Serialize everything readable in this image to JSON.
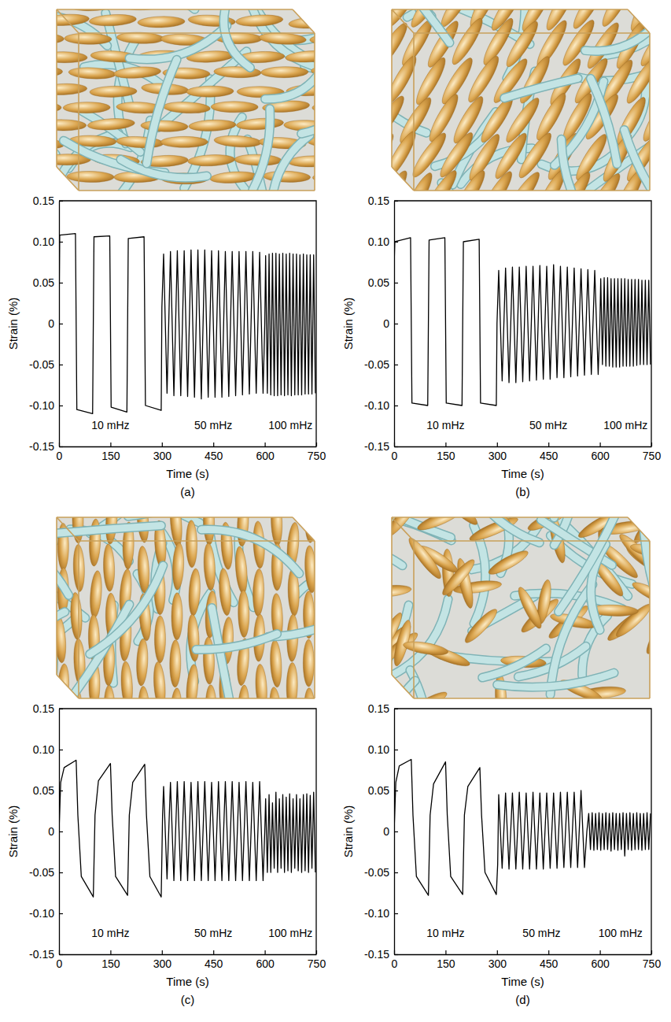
{
  "chart_data": [
    {
      "type": "line",
      "title": "(a)",
      "x_label": "Time (s)",
      "y_label": "Strain (%)",
      "color": "#000000",
      "xlim": [
        0,
        750
      ],
      "ylim": [
        -0.15,
        0.15
      ],
      "xticks": [
        0,
        150,
        300,
        450,
        600,
        750
      ],
      "yticks": [
        -0.15,
        {
          "value": -0.1,
          "label": "-0.10"
        },
        -0.05,
        0,
        0.05,
        {
          "value": 0.1,
          "label": "0.10"
        },
        0.15
      ],
      "annotations": [
        {
          "text": "10 mHz",
          "x": 150,
          "y": -0.125
        },
        {
          "text": "50 mHz",
          "x": 450,
          "y": -0.125
        },
        {
          "text": "100 mHz",
          "x": 675,
          "y": -0.125
        }
      ],
      "x": [
        0,
        2,
        48,
        52,
        98,
        102,
        148,
        152,
        198,
        202,
        248,
        252,
        298,
        300,
        305,
        315,
        325,
        335,
        345,
        355,
        365,
        375,
        385,
        395,
        405,
        415,
        425,
        435,
        445,
        455,
        465,
        475,
        485,
        495,
        505,
        515,
        525,
        535,
        545,
        555,
        565,
        575,
        585,
        595,
        600,
        602.5,
        607.5,
        612.5,
        617.5,
        622.5,
        627.5,
        632.5,
        637.5,
        642.5,
        647.5,
        652.5,
        657.5,
        662.5,
        667.5,
        672.5,
        677.5,
        682.5,
        687.5,
        692.5,
        697.5,
        702.5,
        707.5,
        712.5,
        717.5,
        722.5,
        727.5,
        732.5,
        737.5,
        742.5,
        747.5
      ],
      "values": [
        0,
        0.108,
        0.11,
        -0.105,
        -0.11,
        0.106,
        0.107,
        -0.102,
        -0.108,
        0.104,
        0.106,
        -0.1,
        -0.106,
        0.02,
        0.085,
        -0.085,
        0.088,
        -0.088,
        0.089,
        -0.088,
        0.089,
        -0.089,
        0.09,
        -0.09,
        0.09,
        -0.092,
        0.09,
        -0.09,
        0.089,
        -0.09,
        0.089,
        -0.09,
        0.088,
        -0.089,
        0.088,
        -0.088,
        0.088,
        -0.087,
        0.088,
        -0.086,
        0.088,
        -0.085,
        0.087,
        -0.085,
        0,
        0.083,
        -0.085,
        0.085,
        -0.087,
        0.086,
        -0.088,
        0.086,
        -0.088,
        0.085,
        -0.087,
        0.086,
        -0.088,
        0.085,
        -0.087,
        0.086,
        -0.088,
        0.085,
        -0.087,
        0.085,
        -0.087,
        0.084,
        -0.087,
        0.085,
        -0.086,
        0.084,
        -0.086,
        0.084,
        -0.086,
        0.084,
        -0.085
      ]
    },
    {
      "type": "line",
      "title": "(b)",
      "x_label": "Time (s)",
      "y_label": "Strain (%)",
      "color": "#000000",
      "xlim": [
        0,
        750
      ],
      "ylim": [
        -0.15,
        0.15
      ],
      "xticks": [
        0,
        150,
        300,
        450,
        600,
        750
      ],
      "yticks": [
        -0.15,
        {
          "value": -0.1,
          "label": "-0.10"
        },
        -0.05,
        0,
        0.05,
        {
          "value": 0.1,
          "label": "0.10"
        },
        0.15
      ],
      "annotations": [
        {
          "text": "10 mHz",
          "x": 150,
          "y": -0.125
        },
        {
          "text": "50 mHz",
          "x": 450,
          "y": -0.125
        },
        {
          "text": "100 mHz",
          "x": 675,
          "y": -0.125
        }
      ],
      "x": [
        0,
        2,
        48,
        52,
        98,
        102,
        148,
        152,
        198,
        202,
        248,
        252,
        298,
        300,
        305,
        315,
        325,
        335,
        345,
        355,
        365,
        375,
        385,
        395,
        405,
        415,
        425,
        435,
        445,
        455,
        465,
        475,
        485,
        495,
        505,
        515,
        525,
        535,
        545,
        555,
        565,
        575,
        585,
        595,
        600,
        602.5,
        607.5,
        612.5,
        617.5,
        622.5,
        627.5,
        632.5,
        637.5,
        642.5,
        647.5,
        652.5,
        657.5,
        662.5,
        667.5,
        672.5,
        677.5,
        682.5,
        687.5,
        692.5,
        697.5,
        702.5,
        707.5,
        712.5,
        717.5,
        722.5,
        727.5,
        732.5,
        737.5,
        742.5,
        747.5
      ],
      "values": [
        0.07,
        0.1,
        0.105,
        -0.097,
        -0.1,
        0.102,
        0.105,
        -0.097,
        -0.1,
        0.1,
        0.103,
        -0.097,
        -0.1,
        0,
        0.065,
        -0.07,
        0.068,
        -0.072,
        0.069,
        -0.072,
        0.069,
        -0.071,
        0.07,
        -0.07,
        0.07,
        -0.069,
        0.071,
        -0.068,
        0.07,
        -0.068,
        0.072,
        -0.066,
        0.07,
        -0.066,
        0.069,
        -0.065,
        0.068,
        -0.064,
        0.067,
        -0.063,
        0.066,
        -0.062,
        0.065,
        -0.062,
        0,
        0.055,
        -0.05,
        0.056,
        -0.052,
        0.056,
        -0.052,
        0.055,
        -0.053,
        0.055,
        -0.053,
        0.055,
        -0.053,
        0.055,
        -0.052,
        0.055,
        -0.052,
        0.054,
        -0.052,
        0.054,
        -0.052,
        0.054,
        -0.051,
        0.054,
        -0.05,
        0.053,
        -0.05,
        0.053,
        -0.05,
        0.053,
        -0.05
      ]
    },
    {
      "type": "line",
      "title": "(c)",
      "x_label": "Time (s)",
      "y_label": "Strain (%)",
      "color": "#000000",
      "xlim": [
        0,
        750
      ],
      "ylim": [
        -0.15,
        0.15
      ],
      "xticks": [
        0,
        150,
        300,
        450,
        600,
        750
      ],
      "yticks": [
        -0.15,
        {
          "value": -0.1,
          "label": "-0.10"
        },
        -0.05,
        0,
        0.05,
        {
          "value": 0.1,
          "label": "0.10"
        },
        0.15
      ],
      "annotations": [
        {
          "text": "10 mHz",
          "x": 150,
          "y": -0.125
        },
        {
          "text": "50 mHz",
          "x": 450,
          "y": -0.125
        },
        {
          "text": "100 mHz",
          "x": 675,
          "y": -0.125
        }
      ],
      "x": [
        0,
        5,
        15,
        50,
        55,
        65,
        100,
        105,
        115,
        150,
        155,
        165,
        200,
        205,
        215,
        250,
        255,
        265,
        298,
        302,
        305,
        315,
        325,
        335,
        345,
        355,
        365,
        375,
        385,
        395,
        405,
        415,
        425,
        435,
        445,
        455,
        465,
        475,
        485,
        495,
        505,
        515,
        525,
        535,
        545,
        555,
        565,
        575,
        585,
        595,
        600,
        602.5,
        607.5,
        612.5,
        617.5,
        622.5,
        627.5,
        632.5,
        637.5,
        642.5,
        647.5,
        652.5,
        657.5,
        662.5,
        667.5,
        672.5,
        677.5,
        682.5,
        687.5,
        692.5,
        697.5,
        702.5,
        707.5,
        712.5,
        717.5,
        722.5,
        727.5,
        732.5,
        737.5,
        742.5,
        747.5
      ],
      "values": [
        0,
        0.06,
        0.078,
        0.087,
        0.02,
        -0.055,
        -0.08,
        0.02,
        0.062,
        0.083,
        0.02,
        -0.055,
        -0.078,
        0.02,
        0.06,
        0.082,
        0.02,
        -0.055,
        -0.08,
        0.02,
        0.055,
        -0.058,
        0.06,
        -0.06,
        0.061,
        -0.06,
        0.061,
        -0.06,
        0.06,
        -0.06,
        0.061,
        -0.06,
        0.061,
        -0.06,
        0.06,
        -0.06,
        0.061,
        -0.06,
        0.061,
        -0.06,
        0.061,
        -0.06,
        0.06,
        -0.06,
        0.061,
        -0.06,
        0.06,
        -0.06,
        0.061,
        -0.06,
        0,
        0.04,
        -0.05,
        0.045,
        -0.05,
        0.035,
        -0.045,
        0.048,
        -0.05,
        0.04,
        -0.045,
        0.045,
        -0.05,
        0.042,
        -0.048,
        0.046,
        -0.05,
        0.04,
        -0.045,
        0.045,
        -0.048,
        0.04,
        -0.05,
        0.045,
        -0.048,
        0.046,
        -0.05,
        0.044,
        -0.045,
        0.048,
        -0.05
      ]
    },
    {
      "type": "line",
      "title": "(d)",
      "x_label": "Time (s)",
      "y_label": "Strain (%)",
      "color": "#000000",
      "xlim": [
        0,
        750
      ],
      "ylim": [
        -0.15,
        0.15
      ],
      "xticks": [
        0,
        150,
        300,
        450,
        600,
        750
      ],
      "yticks": [
        -0.15,
        {
          "value": -0.1,
          "label": "-0.10"
        },
        -0.05,
        0,
        0.05,
        {
          "value": 0.1,
          "label": "0.10"
        },
        0.15
      ],
      "annotations": [
        {
          "text": "10 mHz",
          "x": 150,
          "y": -0.125
        },
        {
          "text": "50 mHz",
          "x": 430,
          "y": -0.125
        },
        {
          "text": "100 mHz",
          "x": 660,
          "y": -0.125
        }
      ],
      "x": [
        0,
        5,
        15,
        50,
        55,
        65,
        100,
        105,
        115,
        150,
        155,
        165,
        200,
        205,
        215,
        250,
        255,
        265,
        298,
        302,
        305,
        315,
        325,
        335,
        345,
        355,
        365,
        375,
        385,
        395,
        405,
        415,
        425,
        435,
        445,
        455,
        465,
        475,
        485,
        495,
        505,
        515,
        525,
        535,
        545,
        555,
        562,
        567.5,
        572.5,
        577.5,
        582.5,
        587.5,
        592.5,
        597.5,
        602.5,
        607.5,
        612.5,
        617.5,
        622.5,
        627.5,
        632.5,
        637.5,
        642.5,
        647.5,
        652.5,
        657.5,
        662.5,
        667.5,
        672.5,
        677.5,
        682.5,
        687.5,
        692.5,
        697.5,
        702.5,
        707.5,
        712.5,
        717.5,
        722.5,
        727.5,
        732.5,
        737.5,
        742.5,
        747.5
      ],
      "values": [
        0,
        0.06,
        0.08,
        0.088,
        0.02,
        -0.055,
        -0.078,
        0.02,
        0.058,
        0.085,
        0.02,
        -0.055,
        -0.077,
        0.02,
        0.055,
        0.078,
        0.02,
        -0.05,
        -0.077,
        -0.04,
        0.045,
        -0.045,
        0.047,
        -0.046,
        0.047,
        -0.046,
        0.048,
        -0.046,
        0.047,
        -0.046,
        0.048,
        -0.046,
        0.047,
        -0.046,
        0.047,
        -0.045,
        0.047,
        -0.045,
        0.048,
        -0.044,
        0.048,
        -0.044,
        0.048,
        -0.044,
        0.05,
        -0.044,
        0,
        0.022,
        -0.022,
        0.023,
        -0.023,
        0.022,
        -0.022,
        0.023,
        -0.023,
        0.022,
        -0.022,
        0.023,
        -0.022,
        0.022,
        -0.024,
        0.023,
        -0.022,
        0.022,
        -0.023,
        0.022,
        -0.022,
        0.023,
        -0.03,
        0.022,
        -0.022,
        0.023,
        -0.023,
        0.022,
        -0.022,
        0.023,
        -0.022,
        0.022,
        -0.023,
        0.022,
        -0.022,
        0.023,
        -0.022,
        0.022
      ]
    }
  ]
}
